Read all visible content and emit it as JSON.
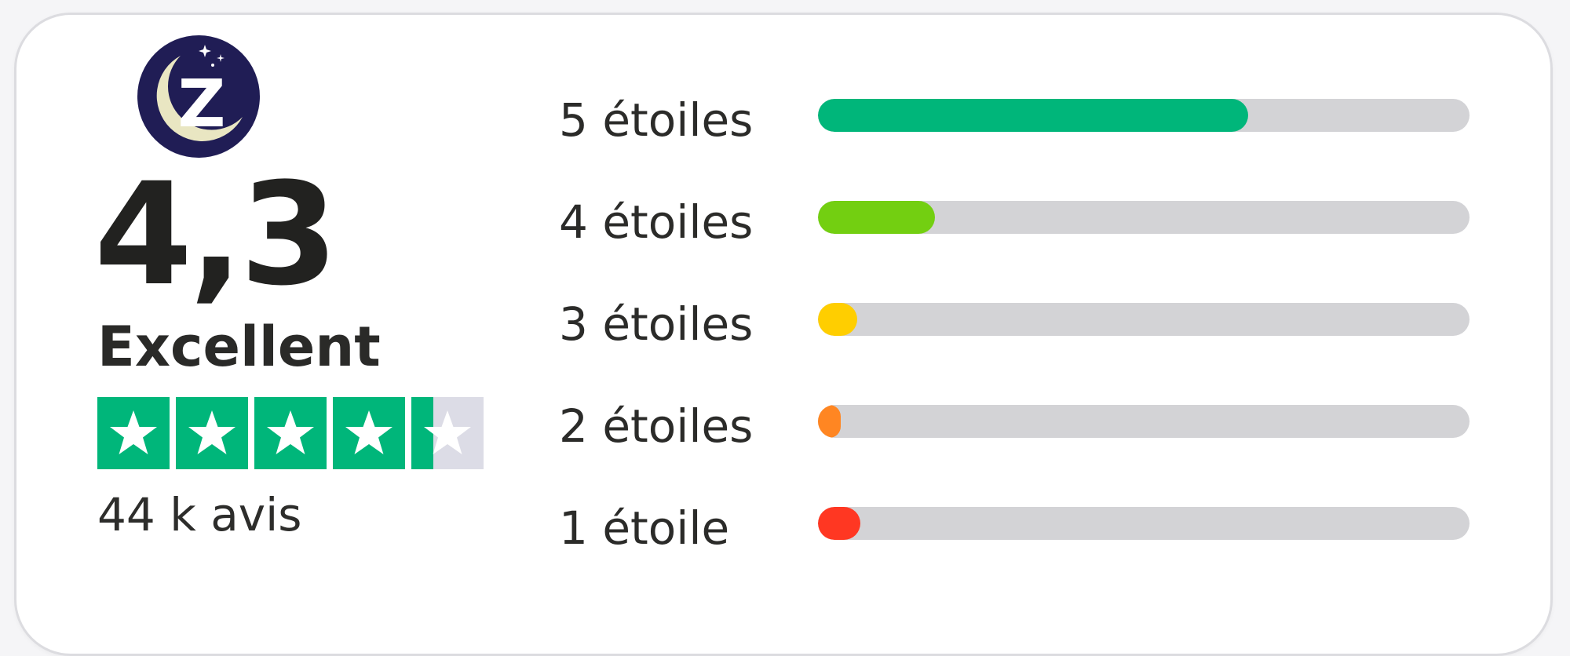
{
  "summary": {
    "score": "4,3",
    "label": "Excellent",
    "rating_value": 4.3,
    "stars_max": 5,
    "review_count": "44 k avis"
  },
  "logo": {
    "letter": "Z",
    "colors": {
      "background": "#201d55",
      "moon": "#e9e6c2",
      "letter": "#ffffff"
    }
  },
  "colors": {
    "star_fill": "#00b67a",
    "star_empty": "#dcdce6",
    "track": "#d3d3d6"
  },
  "distribution": [
    {
      "label": "5 étoiles",
      "share": 0.66,
      "color": "#00b67a"
    },
    {
      "label": "4 étoiles",
      "share": 0.18,
      "color": "#73cf11"
    },
    {
      "label": "3 étoiles",
      "share": 0.06,
      "color": "#ffce00"
    },
    {
      "label": "2 étoiles",
      "share": 0.035,
      "color": "#ff8622"
    },
    {
      "label": "1 étoile",
      "share": 0.065,
      "color": "#ff3722"
    }
  ]
}
